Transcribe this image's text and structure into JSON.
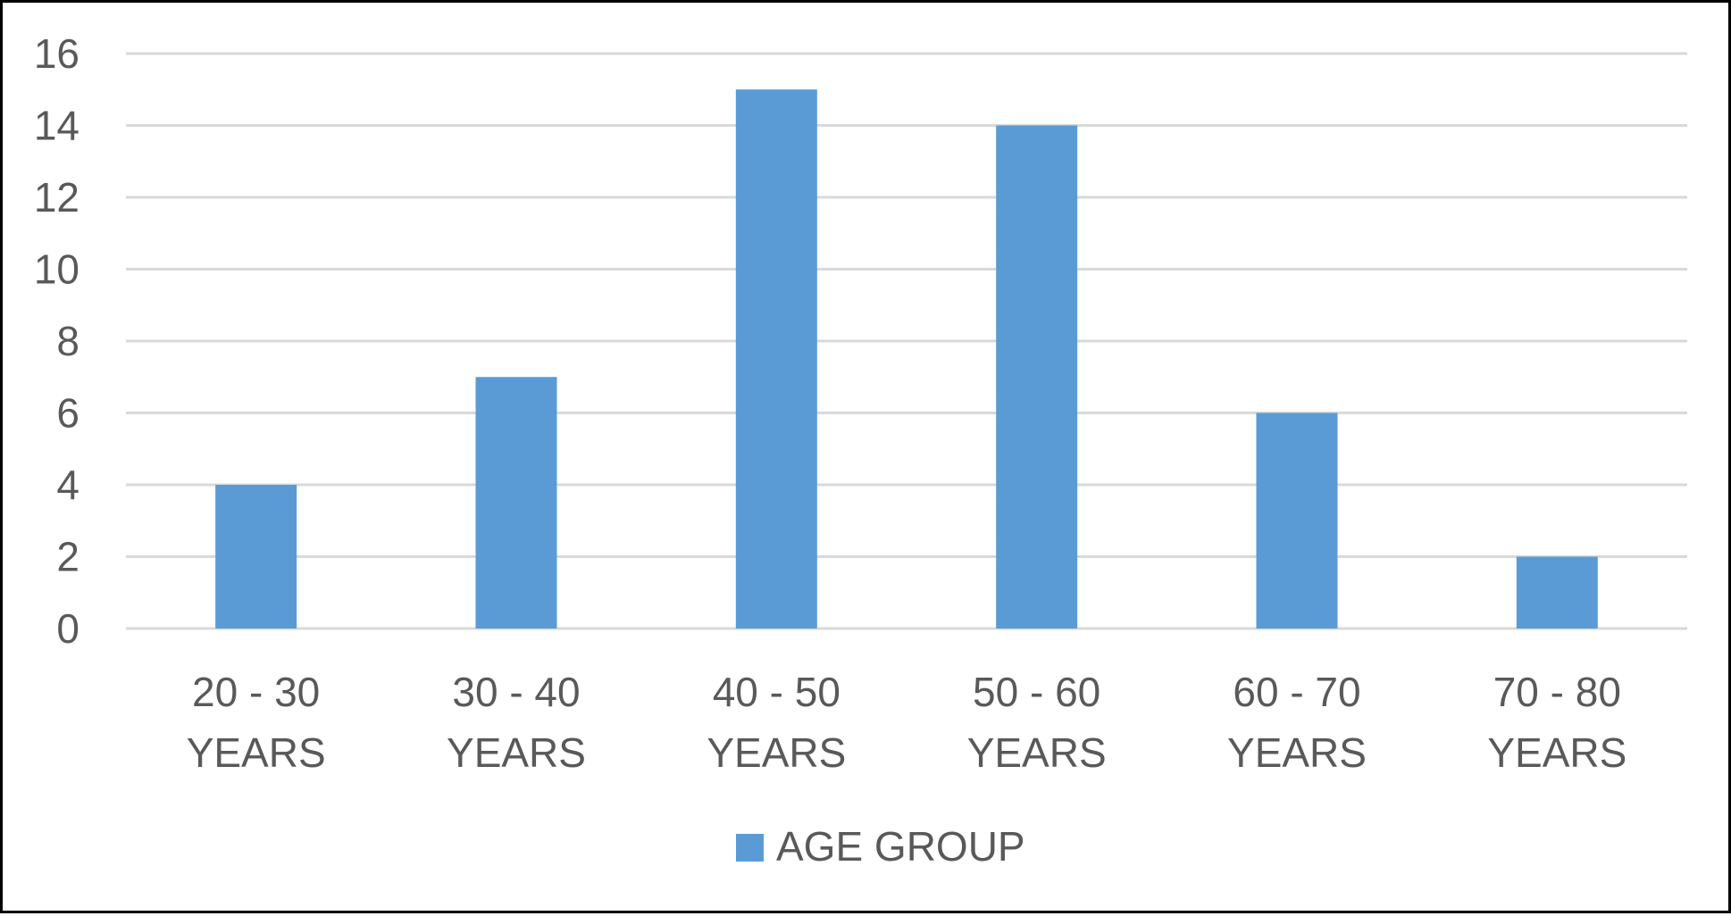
{
  "chart_data": {
    "type": "bar",
    "categories": [
      [
        "20 - 30",
        "YEARS"
      ],
      [
        "30 - 40",
        "YEARS"
      ],
      [
        "40 - 50",
        "YEARS"
      ],
      [
        "50 - 60",
        "YEARS"
      ],
      [
        "60 - 70",
        "YEARS"
      ],
      [
        "70 - 80",
        "YEARS"
      ]
    ],
    "series": [
      {
        "name": "AGE GROUP",
        "color": "#5b9bd5",
        "values": [
          4,
          7,
          15,
          14,
          6,
          2
        ]
      }
    ],
    "title": "",
    "xlabel": "",
    "ylabel": "",
    "ylim": [
      0,
      16
    ],
    "yticks": [
      0,
      2,
      4,
      6,
      8,
      10,
      12,
      14,
      16
    ],
    "grid": true,
    "legend_position": "bottom-center",
    "colors": {
      "gridline": "#d9d9d9",
      "text": "#595959",
      "border": "#000000"
    }
  }
}
